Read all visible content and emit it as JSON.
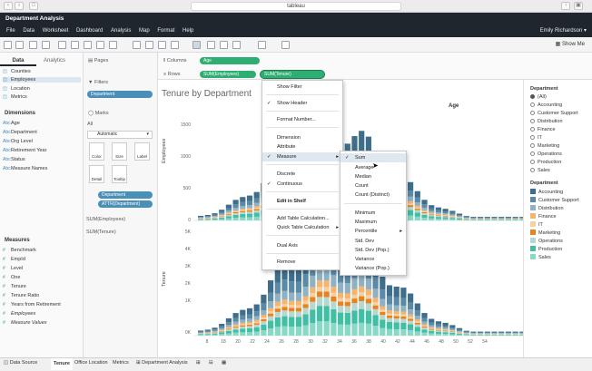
{
  "browser": {
    "url": "tableau"
  },
  "app": {
    "title": "Department Analysis",
    "user": "Emily Richardson ▾"
  },
  "menu": [
    "File",
    "Data",
    "Worksheet",
    "Dashboard",
    "Analysis",
    "Map",
    "Format",
    "Help"
  ],
  "toolbar": {
    "show_me": "Show Me"
  },
  "left_panel": {
    "tabs": [
      "Data",
      "Analytics"
    ],
    "datasources": [
      "Counties",
      "Employees",
      "Location",
      "Metrics"
    ],
    "dimensions_label": "Dimensions",
    "dimensions": [
      {
        "glyph": "Abc",
        "name": "Age"
      },
      {
        "glyph": "Abc",
        "name": "Department"
      },
      {
        "glyph": "Abc",
        "name": "Org Level"
      },
      {
        "glyph": "Abc",
        "name": "Retirement Year"
      },
      {
        "glyph": "Abc",
        "name": "Status"
      },
      {
        "glyph": "Abc",
        "name": "Measure Names"
      }
    ],
    "measures_label": "Measures",
    "measures": [
      "Benchmark",
      "EmpId",
      "Level",
      "One",
      "Tenure",
      "Tenure Ratio",
      "Years from Retirement",
      "Employees",
      "Measure Values"
    ]
  },
  "cards": {
    "pages": "Pages",
    "filters": "Filters",
    "filter_pill": "Department",
    "marks": "Marks",
    "all": "All",
    "mark_type": "Automatic",
    "buttons": [
      "Color",
      "Size",
      "Label",
      "Detail",
      "Tooltip"
    ],
    "mark_pills": [
      "Department",
      "ATTR(Department)"
    ],
    "sum_employees": "SUM(Employees)",
    "sum_tenure": "SUM(Tenure)"
  },
  "shelves": {
    "columns_label": "Columns",
    "rows_label": "Rows",
    "columns_pill": "Age",
    "rows_pills": [
      "SUM(Employees)",
      "SUM(Tenure)"
    ]
  },
  "view": {
    "title": "Tenure by Department",
    "axis_top": "Age",
    "yaxis1": "Employees",
    "yaxis2": "Tenure",
    "yticks1": [
      "1500",
      "1000",
      "500",
      "0"
    ],
    "yticks2": [
      "5K",
      "4K",
      "3K",
      "2K",
      "1K",
      "0K"
    ],
    "xticks": [
      "8",
      "18",
      "20",
      "22",
      "24",
      "26",
      "28",
      "30",
      "32",
      "34",
      "36",
      "38",
      "40",
      "42",
      "44",
      "46",
      "48",
      "50",
      "52",
      "54"
    ]
  },
  "context_menu": {
    "items": [
      "Show Filter",
      "Show Header",
      "Format Number...",
      "Dimension",
      "Attribute",
      "Measure",
      "Discrete",
      "Continuous",
      "Edit in Shelf",
      "Add Table Calculation...",
      "Quick Table Calculation",
      "Dual Axis",
      "Remove"
    ]
  },
  "submenu": {
    "items": [
      "Sum",
      "Average",
      "Median",
      "Count",
      "Count (Distinct)",
      "Minimum",
      "Maximum",
      "Percentile",
      "Std. Dev",
      "Std. Dev (Pop.)",
      "Variance",
      "Variance (Pop.)"
    ]
  },
  "filter_legend": {
    "title": "Department",
    "items": [
      "(All)",
      "Accounting",
      "Customer Support",
      "Distribution",
      "Finance",
      "IT",
      "Marketing",
      "Operations",
      "Production",
      "Sales"
    ]
  },
  "color_legend": {
    "title": "Department",
    "items": [
      {
        "name": "Accounting",
        "color": "#3f6e8c"
      },
      {
        "name": "Customer Support",
        "color": "#5b8aa6"
      },
      {
        "name": "Distribution",
        "color": "#8fb1c4"
      },
      {
        "name": "Finance",
        "color": "#f7b56b"
      },
      {
        "name": "IT",
        "color": "#f6d0a4"
      },
      {
        "name": "Marketing",
        "color": "#e8821f"
      },
      {
        "name": "Operations",
        "color": "#b8d8cf"
      },
      {
        "name": "Production",
        "color": "#3fbfa4"
      },
      {
        "name": "Sales",
        "color": "#88d9c6"
      }
    ]
  },
  "bottom_tabs": [
    "Data Source",
    "Tenure",
    "Office Location",
    "Metrics",
    "Department Analysis"
  ]
}
